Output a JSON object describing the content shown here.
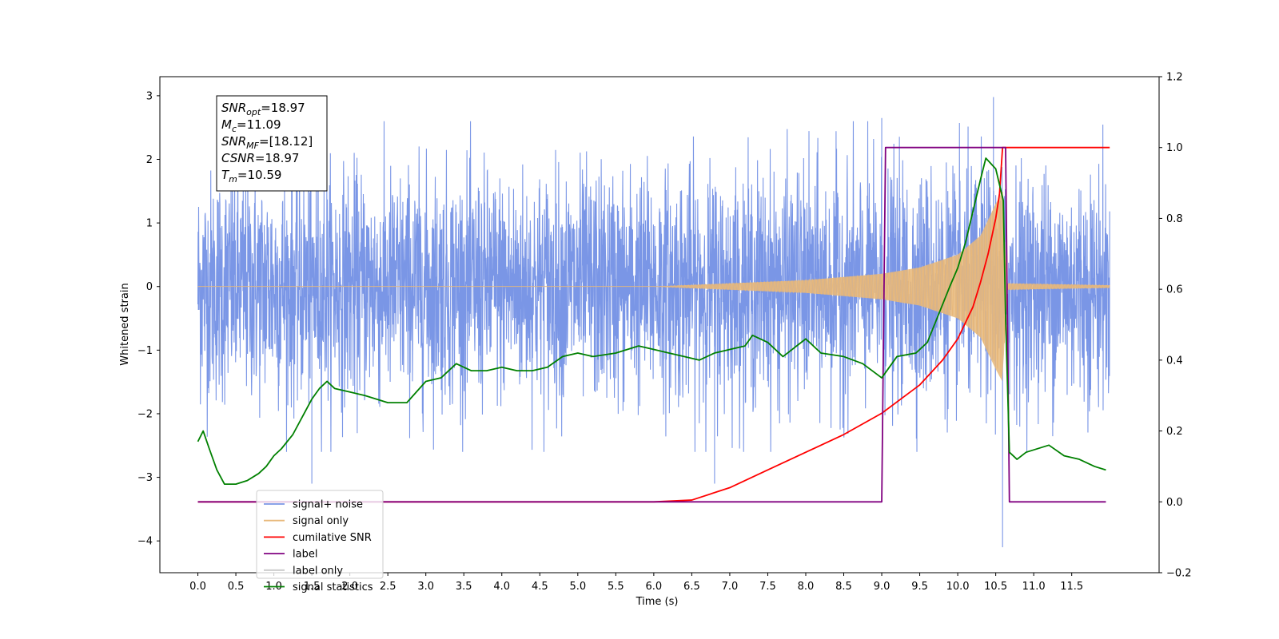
{
  "chart_data": {
    "type": "line",
    "xlabel": "Time (s)",
    "ylabel": "Whitened strain",
    "xlim": [
      -0.5,
      12.65
    ],
    "ylim": [
      -4.5,
      3.3
    ],
    "y2lim": [
      -0.2,
      1.2
    ],
    "x_ticks": [
      "0.0",
      "0.5",
      "1.0",
      "1.5",
      "2.0",
      "2.5",
      "3.0",
      "3.5",
      "4.0",
      "4.5",
      "5.0",
      "5.5",
      "6.0",
      "6.5",
      "7.0",
      "7.5",
      "8.0",
      "8.5",
      "9.0",
      "9.5",
      "10.0",
      "10.5",
      "11.0",
      "11.5"
    ],
    "y_ticks": [
      3,
      2,
      1,
      0,
      -1,
      -2,
      -3,
      -4
    ],
    "y_tick_labels": [
      "3",
      "2",
      "1",
      "0",
      "−1",
      "−2",
      "−3",
      "−4"
    ],
    "y2_ticks": [
      1.2,
      1.0,
      0.8,
      0.6,
      0.4,
      0.2,
      0.0,
      -0.2
    ],
    "y2_tick_labels": [
      "1.2",
      "1.0",
      "0.8",
      "0.6",
      "0.4",
      "0.2",
      "0.0",
      "−0.2"
    ],
    "grid": false,
    "legend_placement": "lower-left",
    "info_box": [
      {
        "base": "SNR",
        "sub": "opt",
        "value": "=18.97"
      },
      {
        "base": "M",
        "sub": "c",
        "value": "=11.09"
      },
      {
        "base": "SNR",
        "sub": "MF",
        "value": "=[18.12]"
      },
      {
        "base": "CSNR",
        "sub": "",
        "value": "=18.97"
      },
      {
        "base": "T",
        "sub": "m",
        "value": "=10.59"
      }
    ],
    "series": [
      {
        "name": "signal+ noise",
        "color": "#7a96e6",
        "axis": "left",
        "kind": "noisy-strain",
        "x_range": [
          0.0,
          12.0
        ],
        "approx_envelope": [
          -2.3,
          2.3
        ],
        "notable_peaks": [
          {
            "x": 10.47,
            "y": 2.98
          },
          {
            "x": 10.59,
            "y": -4.1
          },
          {
            "x": 1.5,
            "y": -3.1
          },
          {
            "x": 6.8,
            "y": -3.1
          },
          {
            "x": 9.0,
            "y": 2.65
          }
        ]
      },
      {
        "name": "signal only",
        "color": "#e8b87a",
        "axis": "left",
        "kind": "chirp",
        "x_range": [
          0.0,
          12.0
        ],
        "merger_time": 10.59,
        "envelope_points": [
          [
            6.0,
            0.0
          ],
          [
            7.0,
            0.05
          ],
          [
            8.0,
            0.1
          ],
          [
            9.0,
            0.2
          ],
          [
            9.5,
            0.3
          ],
          [
            10.0,
            0.5
          ],
          [
            10.3,
            0.8
          ],
          [
            10.5,
            1.3
          ],
          [
            10.59,
            1.5
          ],
          [
            10.65,
            0.05
          ],
          [
            12.0,
            0.02
          ]
        ]
      },
      {
        "name": "cumilative SNR",
        "color": "#ff0000",
        "axis": "right",
        "points": [
          [
            0.0,
            0.0
          ],
          [
            6.0,
            0.0
          ],
          [
            6.5,
            0.005
          ],
          [
            7.0,
            0.04
          ],
          [
            7.5,
            0.09
          ],
          [
            8.0,
            0.14
          ],
          [
            8.5,
            0.19
          ],
          [
            9.0,
            0.25
          ],
          [
            9.5,
            0.33
          ],
          [
            9.8,
            0.4
          ],
          [
            10.0,
            0.46
          ],
          [
            10.2,
            0.55
          ],
          [
            10.3,
            0.62
          ],
          [
            10.4,
            0.7
          ],
          [
            10.5,
            0.8
          ],
          [
            10.55,
            0.87
          ],
          [
            10.59,
            1.0
          ],
          [
            12.0,
            1.0
          ]
        ]
      },
      {
        "name": "label",
        "color": "#800080",
        "axis": "right",
        "points": [
          [
            0.0,
            0.0
          ],
          [
            9.0,
            0.0
          ],
          [
            9.05,
            1.0
          ],
          [
            10.63,
            1.0
          ],
          [
            10.68,
            0.0
          ],
          [
            11.95,
            0.0
          ]
        ]
      },
      {
        "name": "label only",
        "color": "#c8c8c8",
        "axis": "right",
        "points": []
      },
      {
        "name": "signal statistics",
        "color": "#008000",
        "axis": "right",
        "points": [
          [
            0.0,
            0.17
          ],
          [
            0.07,
            0.2
          ],
          [
            0.15,
            0.15
          ],
          [
            0.25,
            0.09
          ],
          [
            0.35,
            0.05
          ],
          [
            0.5,
            0.05
          ],
          [
            0.65,
            0.06
          ],
          [
            0.8,
            0.08
          ],
          [
            0.9,
            0.1
          ],
          [
            1.0,
            0.13
          ],
          [
            1.1,
            0.15
          ],
          [
            1.25,
            0.19
          ],
          [
            1.35,
            0.23
          ],
          [
            1.5,
            0.29
          ],
          [
            1.6,
            0.32
          ],
          [
            1.7,
            0.34
          ],
          [
            1.8,
            0.32
          ],
          [
            2.0,
            0.31
          ],
          [
            2.2,
            0.3
          ],
          [
            2.5,
            0.28
          ],
          [
            2.75,
            0.28
          ],
          [
            3.0,
            0.34
          ],
          [
            3.2,
            0.35
          ],
          [
            3.4,
            0.39
          ],
          [
            3.6,
            0.37
          ],
          [
            3.8,
            0.37
          ],
          [
            4.0,
            0.38
          ],
          [
            4.2,
            0.37
          ],
          [
            4.4,
            0.37
          ],
          [
            4.6,
            0.38
          ],
          [
            4.8,
            0.41
          ],
          [
            5.0,
            0.42
          ],
          [
            5.2,
            0.41
          ],
          [
            5.5,
            0.42
          ],
          [
            5.8,
            0.44
          ],
          [
            6.0,
            0.43
          ],
          [
            6.2,
            0.42
          ],
          [
            6.4,
            0.41
          ],
          [
            6.6,
            0.4
          ],
          [
            6.8,
            0.42
          ],
          [
            7.0,
            0.43
          ],
          [
            7.2,
            0.44
          ],
          [
            7.3,
            0.47
          ],
          [
            7.5,
            0.45
          ],
          [
            7.7,
            0.41
          ],
          [
            8.0,
            0.46
          ],
          [
            8.2,
            0.42
          ],
          [
            8.5,
            0.41
          ],
          [
            8.75,
            0.39
          ],
          [
            9.0,
            0.35
          ],
          [
            9.2,
            0.41
          ],
          [
            9.45,
            0.42
          ],
          [
            9.6,
            0.45
          ],
          [
            9.75,
            0.53
          ],
          [
            9.9,
            0.61
          ],
          [
            10.0,
            0.66
          ],
          [
            10.1,
            0.73
          ],
          [
            10.2,
            0.82
          ],
          [
            10.3,
            0.91
          ],
          [
            10.37,
            0.97
          ],
          [
            10.5,
            0.94
          ],
          [
            10.6,
            0.85
          ],
          [
            10.63,
            0.52
          ],
          [
            10.68,
            0.14
          ],
          [
            10.78,
            0.12
          ],
          [
            10.9,
            0.14
          ],
          [
            11.2,
            0.16
          ],
          [
            11.4,
            0.13
          ],
          [
            11.6,
            0.12
          ],
          [
            11.8,
            0.1
          ],
          [
            11.95,
            0.09
          ]
        ]
      }
    ]
  }
}
